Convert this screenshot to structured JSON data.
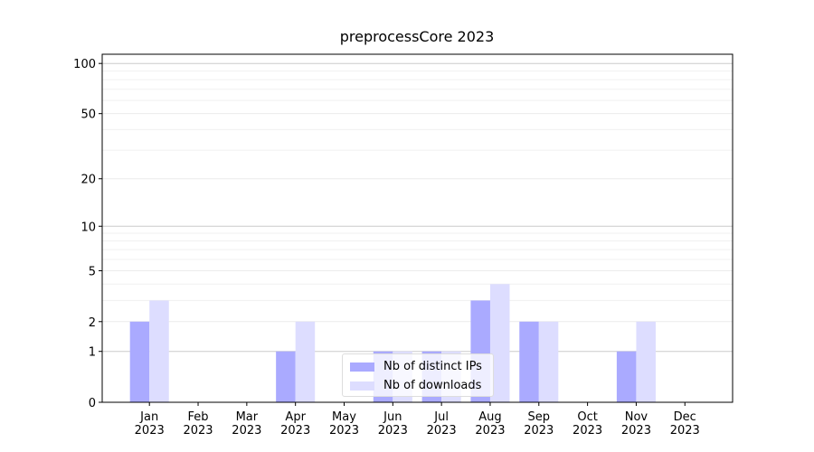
{
  "chart_data": {
    "type": "bar",
    "title": "preprocessCore 2023",
    "categories": [
      "Jan\n2023",
      "Feb\n2023",
      "Mar\n2023",
      "Apr\n2023",
      "May\n2023",
      "Jun\n2023",
      "Jul\n2023",
      "Aug\n2023",
      "Sep\n2023",
      "Oct\n2023",
      "Nov\n2023",
      "Dec\n2023"
    ],
    "series": [
      {
        "name": "Nb of distinct IPs",
        "color": "#aaaaff",
        "values": [
          2,
          0,
          0,
          1,
          0,
          1,
          1,
          3,
          2,
          0,
          1,
          0
        ]
      },
      {
        "name": "Nb of downloads",
        "color": "#ddddff",
        "values": [
          3,
          0,
          0,
          2,
          0,
          1,
          1,
          4,
          2,
          0,
          2,
          0
        ]
      }
    ],
    "y_scale": "log1p",
    "ylim": [
      0,
      113.5
    ],
    "yticks": [
      0,
      1,
      2,
      5,
      10,
      20,
      50,
      100
    ],
    "minor_yticks": [
      3,
      4,
      6,
      7,
      8,
      9,
      30,
      40,
      60,
      70,
      80,
      90
    ],
    "grid": true,
    "legend": "lower center"
  }
}
